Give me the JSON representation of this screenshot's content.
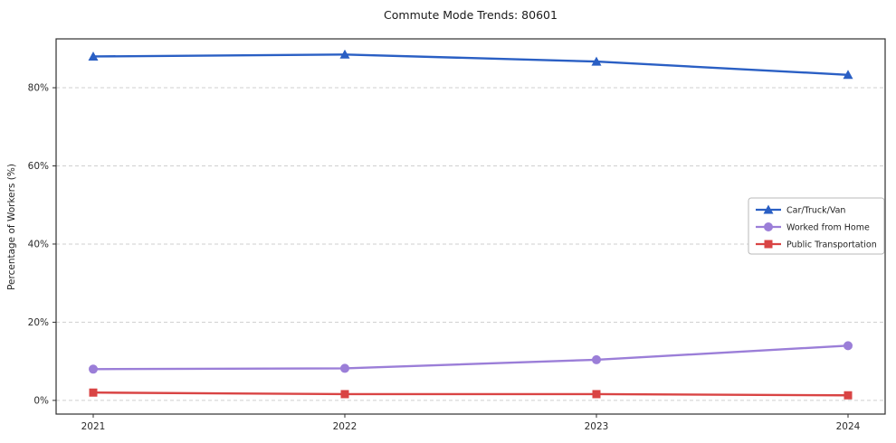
{
  "title": "Commute Mode Trends: 80601",
  "chart_data": {
    "type": "line",
    "title": "Commute Mode Trends: 80601",
    "xlabel": "",
    "ylabel": "Percentage of Workers (%)",
    "x": [
      "2021",
      "2022",
      "2023",
      "2024"
    ],
    "series": [
      {
        "name": "Car/Truck/Van",
        "color": "#2a5fc4",
        "marker": "triangle",
        "values": [
          88.0,
          88.5,
          86.7,
          83.3
        ]
      },
      {
        "name": "Worked from Home",
        "color": "#9b7ed8",
        "marker": "circle",
        "values": [
          8.0,
          8.2,
          10.4,
          14.0
        ]
      },
      {
        "name": "Public Transportation",
        "color": "#d94444",
        "marker": "square",
        "values": [
          2.0,
          1.6,
          1.6,
          1.3
        ]
      }
    ],
    "yticks": [
      0,
      20,
      40,
      60,
      80
    ],
    "ytick_labels": [
      "0%",
      "20%",
      "40%",
      "60%",
      "80%"
    ],
    "ylim": [
      -3.5,
      92.5
    ],
    "grid": "dashed-horizontal",
    "legend_position": "center-right",
    "frame_color": "#2f2f2f",
    "grid_color": "#cfcfcf",
    "tick_label_color": "#2b2b2b"
  }
}
